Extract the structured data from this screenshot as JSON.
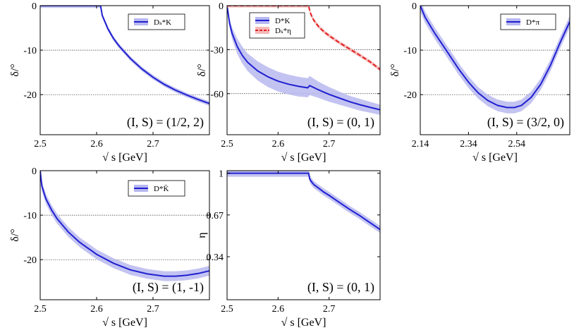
{
  "chart_data": [
    {
      "type": "line",
      "panel": "top-left",
      "xlabel": "√ s [GeV]",
      "ylabel": "δ/°",
      "xlim": [
        2.5,
        2.8
      ],
      "ylim": [
        -29,
        0
      ],
      "xticks": [
        "2.5",
        "2.6",
        "2.7"
      ],
      "yticks": [
        "0",
        "-10",
        "-20"
      ],
      "xtick_values": [
        2.5,
        2.6,
        2.7
      ],
      "ytick_values": [
        0,
        -10,
        -20
      ],
      "grid": "dotted horizontal at -10 and -20",
      "legend_placement": "top-right",
      "annotation": "(I, S) = (1/2, 2)",
      "series": [
        {
          "name": "Dₛ*K",
          "color": "#2020d0",
          "band_color": "#b8b8f0",
          "x": [
            2.5,
            2.607,
            2.61,
            2.62,
            2.63,
            2.64,
            2.66,
            2.68,
            2.7,
            2.72,
            2.74,
            2.76,
            2.78,
            2.8
          ],
          "y": [
            0,
            0,
            -2.2,
            -5.2,
            -7.4,
            -9.1,
            -11.9,
            -14.2,
            -16.1,
            -17.7,
            -19.0,
            -20.1,
            -21.1,
            -22.0
          ],
          "band": 0.5
        }
      ]
    },
    {
      "type": "line",
      "panel": "top-middle",
      "xlabel": "√ s [GeV]",
      "ylabel": "δ/°",
      "xlim": [
        2.5,
        2.8
      ],
      "ylim": [
        -88,
        0
      ],
      "xticks": [
        "2.5",
        "2.6",
        "2.7"
      ],
      "yticks": [
        "0",
        "-30",
        "-60"
      ],
      "xtick_values": [
        2.5,
        2.6,
        2.7
      ],
      "ytick_values": [
        0,
        -30,
        -60
      ],
      "grid": "dotted horizontal at -30 and -60",
      "legend_placement": "top-left",
      "annotation": "(I, S) = (0, 1)",
      "series": [
        {
          "name": "D*K",
          "color": "#2020d0",
          "band_color": "#b8b8f0",
          "x": [
            2.5,
            2.505,
            2.51,
            2.52,
            2.53,
            2.54,
            2.56,
            2.58,
            2.6,
            2.62,
            2.64,
            2.658,
            2.662,
            2.68,
            2.7,
            2.72,
            2.74,
            2.76,
            2.78,
            2.8
          ],
          "y": [
            0,
            -12,
            -19,
            -28,
            -34,
            -38.5,
            -44.5,
            -48.5,
            -51.5,
            -53.5,
            -55,
            -56,
            -54.5,
            -57.5,
            -60.5,
            -63,
            -65.5,
            -67.5,
            -69.3,
            -71
          ],
          "band_lo": [
            0,
            -15,
            -23,
            -33,
            -39.5,
            -44.5,
            -51,
            -55.5,
            -58.5,
            -60.5,
            -62,
            -62.5,
            -61,
            -63,
            -65.5,
            -67.5,
            -69.5,
            -71.5,
            -73,
            -74.5
          ],
          "band_hi": [
            0,
            -9,
            -15,
            -22.5,
            -28,
            -32.5,
            -38,
            -42,
            -45,
            -47,
            -48.5,
            -49.5,
            -48,
            -52,
            -55.5,
            -58.5,
            -61.5,
            -63.5,
            -65.5,
            -67.5
          ]
        },
        {
          "name": "Dₛ*η",
          "color": "#e02020",
          "band_color": "#f5b8b8",
          "dashed": true,
          "x": [
            2.5,
            2.66,
            2.662,
            2.665,
            2.67,
            2.68,
            2.69,
            2.7,
            2.72,
            2.74,
            2.76,
            2.78,
            2.8
          ],
          "y": [
            0,
            0,
            -3.5,
            -6.5,
            -10,
            -14.5,
            -17.8,
            -20.5,
            -25.2,
            -29.5,
            -33.8,
            -38.2,
            -43.5
          ],
          "band": 1.3
        }
      ]
    },
    {
      "type": "line",
      "panel": "top-right",
      "xlabel": "√ s [GeV]",
      "ylabel": "δ/°",
      "xlim": [
        2.14,
        2.76
      ],
      "ylim": [
        -29,
        0
      ],
      "xticks": [
        "2.14",
        "2.34",
        "2.54"
      ],
      "yticks": [
        "0",
        "-10",
        "-20"
      ],
      "xtick_values": [
        2.14,
        2.34,
        2.54
      ],
      "ytick_values": [
        0,
        -10,
        -20
      ],
      "grid": "dotted horizontal at -10 and -20",
      "legend_placement": "top-right",
      "annotation": "(I, S) = (3/2, 0)",
      "series": [
        {
          "name": "D*π",
          "color": "#2020d0",
          "band_color": "#b8b8f0",
          "x": [
            2.14,
            2.16,
            2.2,
            2.25,
            2.3,
            2.34,
            2.38,
            2.42,
            2.46,
            2.5,
            2.53,
            2.56,
            2.6,
            2.64,
            2.68,
            2.72,
            2.76
          ],
          "y": [
            0,
            -2.6,
            -6.2,
            -10.2,
            -14.3,
            -17.2,
            -19.6,
            -21.3,
            -22.4,
            -22.9,
            -22.9,
            -22.4,
            -20.6,
            -17.6,
            -13.4,
            -8.3,
            -3.6
          ],
          "band": 1.3
        }
      ]
    },
    {
      "type": "line",
      "panel": "bottom-left",
      "xlabel": "√ s [GeV]",
      "ylabel": "δ/°",
      "xlim": [
        2.5,
        2.8
      ],
      "ylim": [
        -29,
        0
      ],
      "xticks": [
        "2.5",
        "2.6",
        "2.7"
      ],
      "yticks": [
        "0",
        "-10",
        "-20"
      ],
      "xtick_values": [
        2.5,
        2.6,
        2.7
      ],
      "ytick_values": [
        0,
        -10,
        -20
      ],
      "grid": "dotted horizontal at -10 and -20",
      "legend_placement": "top-right",
      "annotation": "(I, S) = (1, -1)",
      "series": [
        {
          "name": "D*K̄",
          "color": "#2020d0",
          "band_color": "#b8b8f0",
          "x": [
            2.5,
            2.503,
            2.51,
            2.52,
            2.53,
            2.55,
            2.57,
            2.6,
            2.63,
            2.66,
            2.69,
            2.72,
            2.74,
            2.76,
            2.78,
            2.8
          ],
          "y": [
            0,
            -3.5,
            -6.3,
            -8.8,
            -10.8,
            -13.8,
            -16.1,
            -18.8,
            -20.8,
            -22.3,
            -23.2,
            -23.7,
            -23.7,
            -23.5,
            -23.1,
            -22.5
          ],
          "band": 1.1
        }
      ]
    },
    {
      "type": "line",
      "panel": "bottom-middle",
      "xlabel": "√ s [GeV]",
      "ylabel": "η",
      "xlim": [
        2.5,
        2.8
      ],
      "ylim": [
        0,
        1.02
      ],
      "xticks": [
        "2.5",
        "2.6",
        "2.7"
      ],
      "yticks": [
        "1",
        "0.67",
        "0.34"
      ],
      "xtick_values": [
        2.5,
        2.6,
        2.7
      ],
      "ytick_values": [
        1,
        0.67,
        0.34
      ],
      "annotation": "(I, S) = (0, 1)",
      "series": [
        {
          "name": "",
          "color": "#2020d0",
          "band_color": "#b8b8f0",
          "x": [
            2.5,
            2.66,
            2.662,
            2.665,
            2.67,
            2.68,
            2.69,
            2.7,
            2.72,
            2.74,
            2.76,
            2.78,
            2.8
          ],
          "y": [
            1,
            1,
            0.955,
            0.935,
            0.91,
            0.88,
            0.85,
            0.825,
            0.77,
            0.715,
            0.665,
            0.61,
            0.555
          ],
          "band": 0.028
        }
      ]
    }
  ]
}
